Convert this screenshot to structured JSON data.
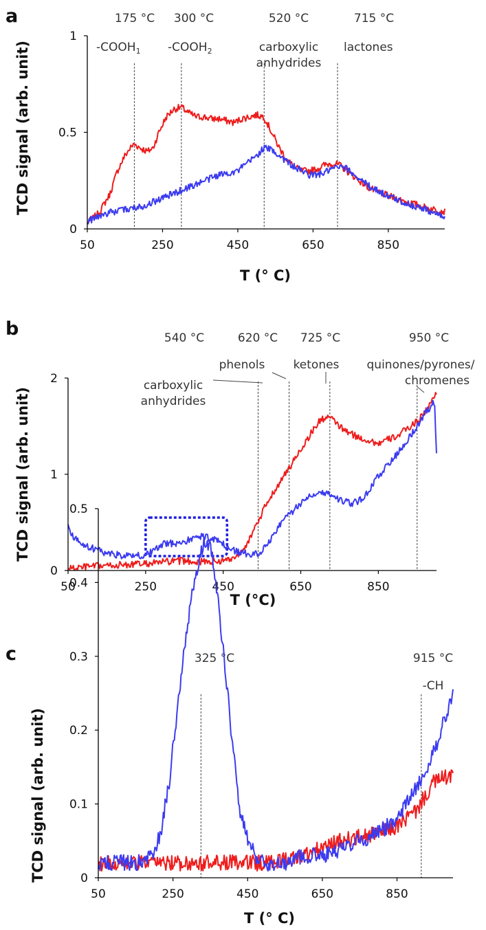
{
  "colors": {
    "series_red": "#ee1c1c",
    "series_blue": "#3b3bf0",
    "axis": "#000000",
    "marker_line": "#444444",
    "highlight_box": "#1f1fe0"
  },
  "chart_data": [
    {
      "panel": "a",
      "type": "line",
      "xlabel": "T (° C)",
      "ylabel": "TCD signal  (arb. unit)",
      "xlim": [
        50,
        1000
      ],
      "ylim": [
        0,
        1
      ],
      "xticks": [
        "50",
        "250",
        "450",
        "650",
        "850"
      ],
      "yticks": [
        "0",
        "0.5",
        "1"
      ],
      "grid": false,
      "series": [
        {
          "color": "red",
          "x": [
            50,
            80,
            110,
            130,
            150,
            165,
            175,
            190,
            210,
            225,
            240,
            260,
            280,
            300,
            320,
            340,
            360,
            380,
            400,
            420,
            440,
            460,
            480,
            500,
            520,
            540,
            560,
            580,
            600,
            620,
            640,
            660,
            680,
            700,
            720,
            740,
            760,
            780,
            800,
            850,
            900,
            950,
            1000
          ],
          "y": [
            0.03,
            0.08,
            0.18,
            0.3,
            0.38,
            0.42,
            0.44,
            0.42,
            0.4,
            0.42,
            0.5,
            0.58,
            0.62,
            0.63,
            0.6,
            0.58,
            0.58,
            0.57,
            0.57,
            0.56,
            0.55,
            0.57,
            0.58,
            0.59,
            0.58,
            0.5,
            0.42,
            0.36,
            0.32,
            0.3,
            0.3,
            0.31,
            0.33,
            0.34,
            0.33,
            0.3,
            0.27,
            0.24,
            0.21,
            0.17,
            0.14,
            0.11,
            0.09
          ]
        },
        {
          "color": "blue",
          "x": [
            50,
            100,
            150,
            200,
            250,
            300,
            350,
            400,
            450,
            500,
            520,
            540,
            560,
            580,
            600,
            620,
            640,
            660,
            680,
            700,
            720,
            740,
            760,
            780,
            800,
            850,
            900,
            950,
            1000
          ],
          "y": [
            0.04,
            0.08,
            0.1,
            0.12,
            0.16,
            0.2,
            0.24,
            0.28,
            0.3,
            0.38,
            0.42,
            0.41,
            0.38,
            0.35,
            0.32,
            0.3,
            0.28,
            0.28,
            0.29,
            0.31,
            0.32,
            0.31,
            0.28,
            0.25,
            0.22,
            0.17,
            0.13,
            0.1,
            0.06
          ]
        }
      ],
      "markers": [
        {
          "x": 175,
          "temp_label": "175 °C",
          "group": "-COOH",
          "subscript": "1"
        },
        {
          "x": 300,
          "temp_label": "300 °C",
          "group": "-COOH",
          "subscript": "2"
        },
        {
          "x": 520,
          "temp_label": "520 °C",
          "group": "carboxylic anhydrides"
        },
        {
          "x": 715,
          "temp_label": "715 °C",
          "group": "lactones"
        }
      ]
    },
    {
      "panel": "b",
      "type": "line",
      "xlabel": "T (°C)",
      "ylabel": "TCD signal  (arb. unit)",
      "xlim": [
        50,
        1000
      ],
      "ylim": [
        0,
        2
      ],
      "xticks": [
        "50",
        "250",
        "450",
        "650",
        "850"
      ],
      "yticks": [
        "0",
        "1",
        "2"
      ],
      "grid": false,
      "series": [
        {
          "color": "red",
          "x": [
            50,
            100,
            150,
            200,
            250,
            300,
            350,
            400,
            450,
            480,
            500,
            520,
            540,
            560,
            580,
            600,
            620,
            640,
            660,
            680,
            700,
            720,
            740,
            760,
            800,
            850,
            900,
            950,
            980,
            1000
          ],
          "y": [
            0.02,
            0.04,
            0.05,
            0.06,
            0.07,
            0.09,
            0.1,
            0.09,
            0.1,
            0.14,
            0.22,
            0.34,
            0.5,
            0.68,
            0.82,
            0.94,
            1.06,
            1.2,
            1.32,
            1.45,
            1.56,
            1.6,
            1.54,
            1.46,
            1.38,
            1.32,
            1.4,
            1.55,
            1.7,
            1.85
          ]
        },
        {
          "color": "blue",
          "x": [
            50,
            60,
            80,
            100,
            150,
            200,
            250,
            280,
            300,
            320,
            350,
            380,
            400,
            420,
            440,
            460,
            480,
            500,
            520,
            540,
            560,
            580,
            600,
            620,
            640,
            660,
            680,
            700,
            720,
            740,
            760,
            780,
            800,
            820,
            850,
            900,
            950,
            980,
            995,
            1000
          ],
          "y": [
            0.5,
            0.36,
            0.3,
            0.25,
            0.18,
            0.15,
            0.16,
            0.23,
            0.28,
            0.28,
            0.3,
            0.34,
            0.36,
            0.33,
            0.3,
            0.24,
            0.2,
            0.18,
            0.17,
            0.18,
            0.25,
            0.38,
            0.5,
            0.58,
            0.66,
            0.74,
            0.8,
            0.82,
            0.8,
            0.76,
            0.72,
            0.7,
            0.72,
            0.8,
            0.98,
            1.22,
            1.5,
            1.68,
            1.75,
            1.2
          ]
        }
      ],
      "markers": [
        {
          "x": 540,
          "temp_label": "540 °C",
          "group": "carboxylic anhydrides"
        },
        {
          "x": 620,
          "temp_label": "620 °C",
          "group": "phenols"
        },
        {
          "x": 725,
          "temp_label": "725 °C",
          "group": "ketones"
        },
        {
          "x": 950,
          "temp_label": "950 °C",
          "group": "quinones/pyrones/ chromenes"
        }
      ],
      "highlight": {
        "x": [
          250,
          460
        ],
        "y": [
          0.15,
          0.55
        ]
      }
    },
    {
      "panel": "c",
      "type": "line",
      "xlabel": "T (° C)",
      "ylabel": "TCD signal  (arb. unit)",
      "xlim": [
        50,
        1000
      ],
      "ylim": [
        0,
        0.5
      ],
      "xticks": [
        "50",
        "250",
        "450",
        "650",
        "850"
      ],
      "yticks": [
        "0",
        "0.1",
        "0.2",
        "0.3",
        "0.4",
        "0.5"
      ],
      "grid": false,
      "series": [
        {
          "color": "red",
          "x": [
            50,
            100,
            150,
            200,
            250,
            300,
            350,
            400,
            450,
            500,
            550,
            600,
            650,
            700,
            750,
            800,
            850,
            900,
            950,
            1000
          ],
          "y": [
            0.02,
            0.02,
            0.02,
            0.02,
            0.02,
            0.02,
            0.02,
            0.02,
            0.02,
            0.02,
            0.025,
            0.03,
            0.04,
            0.05,
            0.055,
            0.06,
            0.07,
            0.09,
            0.13,
            0.14
          ]
        },
        {
          "color": "blue",
          "x": [
            50,
            100,
            150,
            200,
            220,
            240,
            260,
            280,
            300,
            320,
            335,
            350,
            370,
            390,
            410,
            430,
            450,
            470,
            500,
            550,
            600,
            650,
            700,
            750,
            800,
            850,
            900,
            950,
            980,
            1000
          ],
          "y": [
            0.02,
            0.02,
            0.02,
            0.03,
            0.07,
            0.13,
            0.22,
            0.31,
            0.38,
            0.43,
            0.46,
            0.45,
            0.38,
            0.28,
            0.18,
            0.09,
            0.05,
            0.03,
            0.02,
            0.02,
            0.03,
            0.03,
            0.04,
            0.05,
            0.06,
            0.08,
            0.12,
            0.17,
            0.22,
            0.25
          ]
        }
      ],
      "markers": [
        {
          "x": 325,
          "temp_label": "325 °C",
          "group": ""
        },
        {
          "x": 915,
          "temp_label": "915 °C",
          "group": "-CH"
        }
      ]
    }
  ]
}
